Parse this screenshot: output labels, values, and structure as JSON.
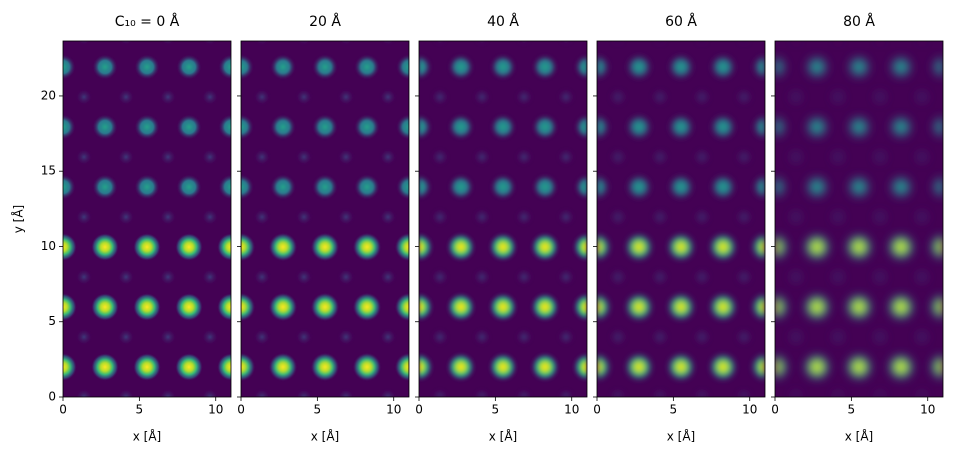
{
  "chart_data": [
    {
      "type": "heatmap",
      "title": "C₁₀ = 0 Å",
      "xlabel": "x [Å]",
      "ylabel": "y [Å]",
      "xlim": [
        0,
        11
      ],
      "ylim": [
        0,
        23.65
      ],
      "xticks": [
        0,
        5,
        10
      ],
      "yticks": [
        0,
        5,
        10,
        15,
        20
      ]
    },
    {
      "type": "heatmap",
      "title": "20 Å",
      "xlabel": "x [Å]",
      "xlim": [
        0,
        11
      ],
      "ylim": [
        0,
        23.65
      ],
      "xticks": [
        0,
        5,
        10
      ],
      "sharey": true
    },
    {
      "type": "heatmap",
      "title": "40 Å",
      "xlabel": "x [Å]",
      "xlim": [
        0,
        11
      ],
      "ylim": [
        0,
        23.65
      ],
      "xticks": [
        0,
        5,
        10
      ],
      "sharey": true
    },
    {
      "type": "heatmap",
      "title": "60 Å",
      "xlabel": "x [Å]",
      "xlim": [
        0,
        11
      ],
      "ylim": [
        0,
        23.65
      ],
      "xticks": [
        0,
        5,
        10
      ],
      "sharey": true
    },
    {
      "type": "heatmap",
      "title": "80 Å",
      "xlabel": "x [Å]",
      "xlim": [
        0,
        11
      ],
      "ylim": [
        0,
        23.65
      ],
      "xticks": [
        0,
        5,
        10
      ],
      "sharey": true
    }
  ]
}
